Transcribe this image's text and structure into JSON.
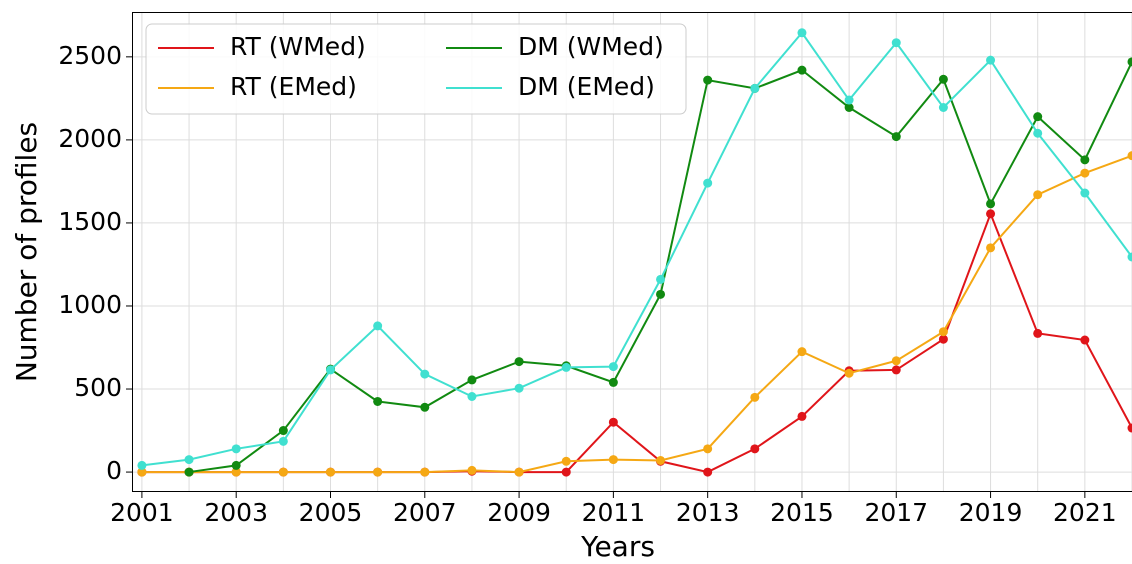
{
  "chart_data": {
    "type": "line",
    "x_label": "Years",
    "y_label": "Number of profiles",
    "x": [
      2001,
      2002,
      2003,
      2004,
      2005,
      2006,
      2007,
      2008,
      2009,
      2010,
      2011,
      2012,
      2013,
      2014,
      2015,
      2016,
      2017,
      2018,
      2019,
      2020,
      2021,
      2022
    ],
    "series": [
      {
        "name": "RT (WMed)",
        "color": "#e0151a",
        "values": [
          0,
          0,
          0,
          0,
          0,
          0,
          0,
          5,
          0,
          0,
          300,
          65,
          0,
          140,
          335,
          610,
          615,
          800,
          1555,
          835,
          795,
          265
        ]
      },
      {
        "name": "RT (EMed)",
        "color": "#f5a814",
        "values": [
          0,
          0,
          0,
          0,
          0,
          0,
          0,
          10,
          0,
          65,
          75,
          70,
          140,
          450,
          725,
          595,
          670,
          845,
          1350,
          1670,
          1800,
          1905
        ]
      },
      {
        "name": "DM (WMed)",
        "color": "#118a11",
        "values": [
          null,
          0,
          40,
          250,
          620,
          425,
          390,
          555,
          665,
          640,
          540,
          1070,
          2360,
          2310,
          2420,
          2195,
          2020,
          2365,
          1615,
          2140,
          1880,
          2470
        ]
      },
      {
        "name": "DM (EMed)",
        "color": "#40e0d0",
        "values": [
          40,
          75,
          140,
          185,
          615,
          880,
          590,
          455,
          505,
          630,
          635,
          1160,
          1740,
          2310,
          2645,
          2240,
          2585,
          2195,
          2480,
          2040,
          1680,
          1295
        ]
      }
    ],
    "xlim": [
      2000.79,
      2022.0
    ],
    "ylim": [
      -120,
      2770
    ],
    "xticks": [
      2001,
      2003,
      2005,
      2007,
      2009,
      2011,
      2013,
      2015,
      2017,
      2019,
      2021
    ],
    "yticks": [
      0,
      500,
      1000,
      1500,
      2000,
      2500
    ],
    "grid": true,
    "legend": "upper left"
  }
}
